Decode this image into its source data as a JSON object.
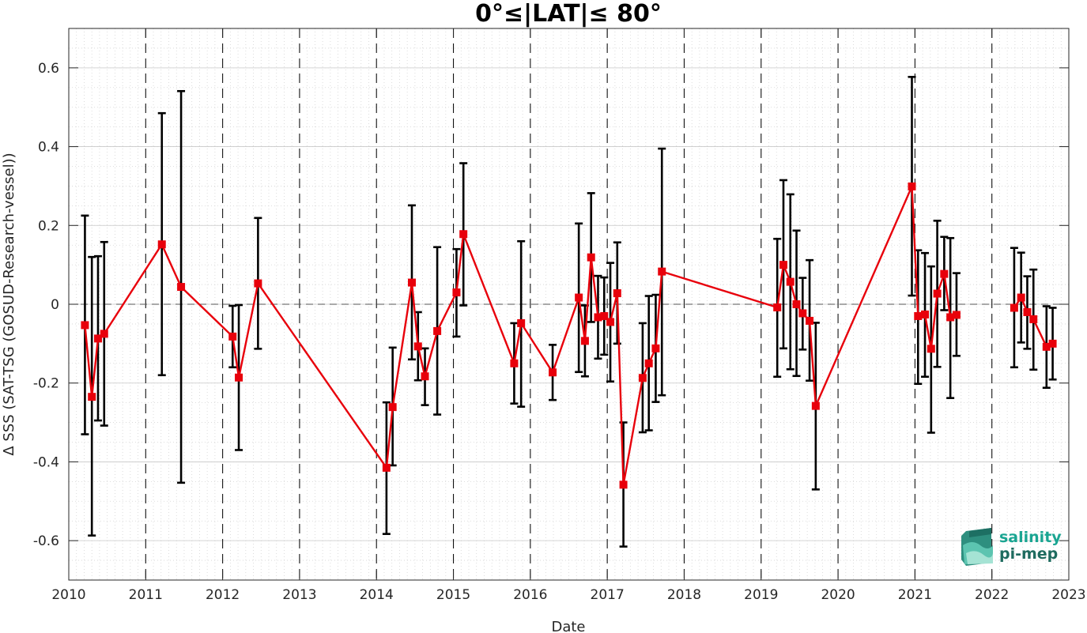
{
  "chart_data": {
    "type": "scatter",
    "title": "0°≤|LAT|≤ 80°",
    "xlabel": "Date",
    "ylabel": "Δ SSS (SAT-TSG (GOSUD-Research-vessel))",
    "xlim": [
      2010,
      2023
    ],
    "ylim": [
      -0.7,
      0.7
    ],
    "x_ticks": [
      2010,
      2011,
      2012,
      2013,
      2014,
      2015,
      2016,
      2017,
      2018,
      2019,
      2020,
      2021,
      2022,
      2023
    ],
    "x_tick_labels": [
      "2010",
      "2011",
      "2012",
      "2013",
      "2014",
      "2015",
      "2016",
      "2017",
      "2018",
      "2019",
      "2020",
      "2021",
      "2022",
      "2023"
    ],
    "y_ticks": [
      -0.6,
      -0.4,
      -0.2,
      0,
      0.2,
      0.4,
      0.6
    ],
    "y_tick_labels": [
      "-0.6",
      "-0.4",
      "-0.2",
      "0",
      "0.2",
      "0.4",
      "0.6"
    ],
    "year_boundaries_dashed": [
      2011,
      2012,
      2013,
      2014,
      2015,
      2016,
      2017,
      2018,
      2019,
      2020,
      2021,
      2022
    ],
    "zero_line": 0,
    "grid": "minor dotted",
    "series": [
      {
        "color": "#e8000b",
        "errorbar_color": "#000000",
        "points": [
          {
            "x": 2010.21,
            "y": -0.053,
            "lo": -0.33,
            "hi": 0.225
          },
          {
            "x": 2010.3,
            "y": -0.235,
            "lo": -0.587,
            "hi": 0.12
          },
          {
            "x": 2010.38,
            "y": -0.087,
            "lo": -0.295,
            "hi": 0.122
          },
          {
            "x": 2010.46,
            "y": -0.075,
            "lo": -0.308,
            "hi": 0.158
          },
          {
            "x": 2011.21,
            "y": 0.152,
            "lo": -0.18,
            "hi": 0.485
          },
          {
            "x": 2011.46,
            "y": 0.044,
            "lo": -0.453,
            "hi": 0.541
          },
          {
            "x": 2012.13,
            "y": -0.082,
            "lo": -0.16,
            "hi": -0.004
          },
          {
            "x": 2012.21,
            "y": -0.186,
            "lo": -0.37,
            "hi": -0.002
          },
          {
            "x": 2012.46,
            "y": 0.053,
            "lo": -0.113,
            "hi": 0.219
          },
          {
            "x": 2014.13,
            "y": -0.415,
            "lo": -0.583,
            "hi": -0.249
          },
          {
            "x": 2014.21,
            "y": -0.261,
            "lo": -0.409,
            "hi": -0.11
          },
          {
            "x": 2014.46,
            "y": 0.055,
            "lo": -0.14,
            "hi": 0.251
          },
          {
            "x": 2014.54,
            "y": -0.107,
            "lo": -0.193,
            "hi": -0.02
          },
          {
            "x": 2014.63,
            "y": -0.183,
            "lo": -0.256,
            "hi": -0.112
          },
          {
            "x": 2014.79,
            "y": -0.068,
            "lo": -0.28,
            "hi": 0.145
          },
          {
            "x": 2015.04,
            "y": 0.03,
            "lo": -0.082,
            "hi": 0.14
          },
          {
            "x": 2015.13,
            "y": 0.178,
            "lo": -0.003,
            "hi": 0.358
          },
          {
            "x": 2015.79,
            "y": -0.15,
            "lo": -0.252,
            "hi": -0.048
          },
          {
            "x": 2015.88,
            "y": -0.048,
            "lo": -0.26,
            "hi": 0.16
          },
          {
            "x": 2016.29,
            "y": -0.173,
            "lo": -0.243,
            "hi": -0.103
          },
          {
            "x": 2016.63,
            "y": 0.017,
            "lo": -0.172,
            "hi": 0.205
          },
          {
            "x": 2016.71,
            "y": -0.093,
            "lo": -0.183,
            "hi": -0.003
          },
          {
            "x": 2016.79,
            "y": 0.119,
            "lo": -0.045,
            "hi": 0.282
          },
          {
            "x": 2016.88,
            "y": -0.033,
            "lo": -0.138,
            "hi": 0.072
          },
          {
            "x": 2016.96,
            "y": -0.03,
            "lo": -0.128,
            "hi": 0.068
          },
          {
            "x": 2017.04,
            "y": -0.045,
            "lo": -0.196,
            "hi": 0.105
          },
          {
            "x": 2017.13,
            "y": 0.028,
            "lo": -0.1,
            "hi": 0.157
          },
          {
            "x": 2017.21,
            "y": -0.458,
            "lo": -0.615,
            "hi": -0.3
          },
          {
            "x": 2017.46,
            "y": -0.187,
            "lo": -0.325,
            "hi": -0.048
          },
          {
            "x": 2017.54,
            "y": -0.15,
            "lo": -0.32,
            "hi": 0.021
          },
          {
            "x": 2017.63,
            "y": -0.112,
            "lo": -0.248,
            "hi": 0.024
          },
          {
            "x": 2017.71,
            "y": 0.083,
            "lo": -0.231,
            "hi": 0.395
          },
          {
            "x": 2019.21,
            "y": -0.008,
            "lo": -0.184,
            "hi": 0.166
          },
          {
            "x": 2019.29,
            "y": 0.1,
            "lo": -0.112,
            "hi": 0.315
          },
          {
            "x": 2019.38,
            "y": 0.057,
            "lo": -0.165,
            "hi": 0.279
          },
          {
            "x": 2019.46,
            "y": 0.0,
            "lo": -0.182,
            "hi": 0.187
          },
          {
            "x": 2019.54,
            "y": -0.023,
            "lo": -0.115,
            "hi": 0.067
          },
          {
            "x": 2019.63,
            "y": -0.042,
            "lo": -0.194,
            "hi": 0.112
          },
          {
            "x": 2019.71,
            "y": -0.258,
            "lo": -0.47,
            "hi": -0.047
          },
          {
            "x": 2020.96,
            "y": 0.299,
            "lo": 0.022,
            "hi": 0.577
          },
          {
            "x": 2021.04,
            "y": -0.03,
            "lo": -0.202,
            "hi": 0.137
          },
          {
            "x": 2021.13,
            "y": -0.026,
            "lo": -0.184,
            "hi": 0.13
          },
          {
            "x": 2021.21,
            "y": -0.113,
            "lo": -0.326,
            "hi": 0.096
          },
          {
            "x": 2021.29,
            "y": 0.027,
            "lo": -0.159,
            "hi": 0.212
          },
          {
            "x": 2021.38,
            "y": 0.077,
            "lo": -0.015,
            "hi": 0.171
          },
          {
            "x": 2021.46,
            "y": -0.033,
            "lo": -0.238,
            "hi": 0.168
          },
          {
            "x": 2021.54,
            "y": -0.027,
            "lo": -0.131,
            "hi": 0.079
          },
          {
            "x": 2022.29,
            "y": -0.009,
            "lo": -0.16,
            "hi": 0.143
          },
          {
            "x": 2022.38,
            "y": 0.017,
            "lo": -0.097,
            "hi": 0.131
          },
          {
            "x": 2022.46,
            "y": -0.02,
            "lo": -0.113,
            "hi": 0.071
          },
          {
            "x": 2022.54,
            "y": -0.038,
            "lo": -0.166,
            "hi": 0.088
          },
          {
            "x": 2022.71,
            "y": -0.108,
            "lo": -0.212,
            "hi": -0.005
          },
          {
            "x": 2022.79,
            "y": -0.1,
            "lo": -0.191,
            "hi": -0.009
          }
        ],
        "segments": [
          [
            0,
            1,
            2,
            3,
            4,
            5,
            6,
            7,
            8,
            9,
            10,
            11,
            12,
            13,
            14,
            15,
            16,
            17,
            18,
            19,
            20,
            21,
            22,
            23,
            24,
            25,
            26,
            27,
            28,
            29,
            30,
            31,
            32,
            33,
            34,
            35,
            36,
            37,
            38,
            39,
            40,
            41,
            42,
            43,
            44,
            45,
            46
          ],
          [
            47,
            48,
            49,
            50,
            51,
            52
          ]
        ]
      }
    ]
  },
  "logo": {
    "line1": "salinity",
    "line2": "pi-mep",
    "color1": "#1aa592",
    "color2": "#1e6b5f"
  }
}
